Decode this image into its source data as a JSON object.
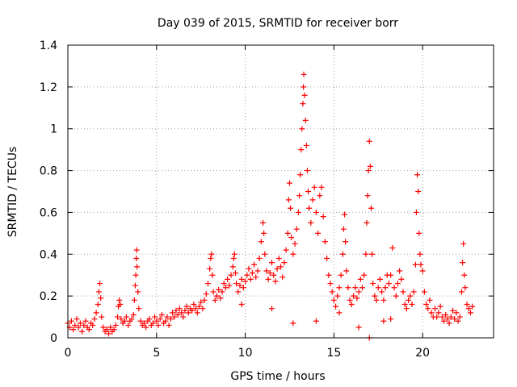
{
  "chart_data": {
    "type": "scatter",
    "title": "Day 039 of 2015, SRMTID for receiver borr",
    "xlabel": "GPS time / hours",
    "ylabel": "SRMTID / TECUs",
    "xlim": [
      0,
      24
    ],
    "ylim": [
      0,
      1.4
    ],
    "x_ticks": [
      0,
      5,
      10,
      15,
      20
    ],
    "x_tick_labels": [
      "0",
      "5",
      "10",
      "15",
      "20"
    ],
    "y_ticks": [
      0,
      0.2,
      0.4,
      0.6,
      0.8,
      1.0,
      1.2,
      1.4
    ],
    "y_tick_labels": [
      "0",
      "0.2",
      "0.4",
      "0.6",
      "0.8",
      "1",
      "1.2",
      "1.4"
    ],
    "grid": true,
    "marker": "plus",
    "color": "#ff0000",
    "series": [
      {
        "name": "SRMTID",
        "points": [
          [
            0.0,
            0.07
          ],
          [
            0.1,
            0.05
          ],
          [
            0.2,
            0.08
          ],
          [
            0.3,
            0.04
          ],
          [
            0.4,
            0.06
          ],
          [
            0.5,
            0.09
          ],
          [
            0.6,
            0.05
          ],
          [
            0.7,
            0.07
          ],
          [
            0.8,
            0.03
          ],
          [
            0.9,
            0.06
          ],
          [
            1.0,
            0.08
          ],
          [
            1.1,
            0.05
          ],
          [
            1.2,
            0.04
          ],
          [
            1.3,
            0.07
          ],
          [
            1.4,
            0.06
          ],
          [
            1.5,
            0.09
          ],
          [
            1.6,
            0.12
          ],
          [
            1.7,
            0.16
          ],
          [
            1.75,
            0.22
          ],
          [
            1.8,
            0.26
          ],
          [
            1.85,
            0.19
          ],
          [
            1.9,
            0.1
          ],
          [
            2.0,
            0.05
          ],
          [
            2.1,
            0.03
          ],
          [
            2.2,
            0.04
          ],
          [
            2.3,
            0.02
          ],
          [
            2.4,
            0.05
          ],
          [
            2.5,
            0.03
          ],
          [
            2.6,
            0.04
          ],
          [
            2.7,
            0.06
          ],
          [
            2.8,
            0.1
          ],
          [
            2.85,
            0.15
          ],
          [
            2.9,
            0.18
          ],
          [
            2.95,
            0.16
          ],
          [
            3.0,
            0.09
          ],
          [
            3.1,
            0.07
          ],
          [
            3.2,
            0.08
          ],
          [
            3.3,
            0.1
          ],
          [
            3.4,
            0.06
          ],
          [
            3.5,
            0.08
          ],
          [
            3.6,
            0.09
          ],
          [
            3.7,
            0.11
          ],
          [
            3.75,
            0.18
          ],
          [
            3.8,
            0.25
          ],
          [
            3.83,
            0.3
          ],
          [
            3.86,
            0.38
          ],
          [
            3.88,
            0.42
          ],
          [
            3.9,
            0.34
          ],
          [
            3.95,
            0.22
          ],
          [
            4.0,
            0.14
          ],
          [
            4.1,
            0.08
          ],
          [
            4.2,
            0.06
          ],
          [
            4.3,
            0.07
          ],
          [
            4.4,
            0.05
          ],
          [
            4.5,
            0.08
          ],
          [
            4.6,
            0.09
          ],
          [
            4.7,
            0.06
          ],
          [
            4.8,
            0.07
          ],
          [
            4.9,
            0.1
          ],
          [
            5.0,
            0.08
          ],
          [
            5.1,
            0.06
          ],
          [
            5.2,
            0.09
          ],
          [
            5.3,
            0.11
          ],
          [
            5.4,
            0.07
          ],
          [
            5.5,
            0.08
          ],
          [
            5.6,
            0.1
          ],
          [
            5.7,
            0.06
          ],
          [
            5.8,
            0.09
          ],
          [
            5.9,
            0.12
          ],
          [
            6.0,
            0.1
          ],
          [
            6.1,
            0.13
          ],
          [
            6.2,
            0.11
          ],
          [
            6.3,
            0.14
          ],
          [
            6.4,
            0.12
          ],
          [
            6.5,
            0.1
          ],
          [
            6.6,
            0.13
          ],
          [
            6.7,
            0.15
          ],
          [
            6.8,
            0.12
          ],
          [
            6.9,
            0.14
          ],
          [
            7.0,
            0.13
          ],
          [
            7.1,
            0.16
          ],
          [
            7.2,
            0.14
          ],
          [
            7.3,
            0.12
          ],
          [
            7.4,
            0.15
          ],
          [
            7.5,
            0.17
          ],
          [
            7.6,
            0.14
          ],
          [
            7.7,
            0.18
          ],
          [
            7.8,
            0.21
          ],
          [
            7.9,
            0.26
          ],
          [
            8.0,
            0.33
          ],
          [
            8.05,
            0.38
          ],
          [
            8.1,
            0.4
          ],
          [
            8.15,
            0.3
          ],
          [
            8.2,
            0.22
          ],
          [
            8.3,
            0.18
          ],
          [
            8.4,
            0.2
          ],
          [
            8.5,
            0.23
          ],
          [
            8.6,
            0.19
          ],
          [
            8.7,
            0.22
          ],
          [
            8.8,
            0.26
          ],
          [
            8.9,
            0.24
          ],
          [
            9.0,
            0.28
          ],
          [
            9.1,
            0.25
          ],
          [
            9.2,
            0.3
          ],
          [
            9.3,
            0.34
          ],
          [
            9.35,
            0.38
          ],
          [
            9.4,
            0.4
          ],
          [
            9.45,
            0.31
          ],
          [
            9.5,
            0.26
          ],
          [
            9.6,
            0.22
          ],
          [
            9.7,
            0.25
          ],
          [
            9.8,
            0.28
          ],
          [
            9.9,
            0.24
          ],
          [
            10.0,
            0.27
          ],
          [
            10.1,
            0.3
          ],
          [
            10.2,
            0.33
          ],
          [
            10.3,
            0.28
          ],
          [
            10.4,
            0.31
          ],
          [
            10.5,
            0.35
          ],
          [
            10.6,
            0.29
          ],
          [
            10.7,
            0.32
          ],
          [
            10.8,
            0.38
          ],
          [
            10.9,
            0.46
          ],
          [
            11.0,
            0.55
          ],
          [
            11.05,
            0.5
          ],
          [
            11.1,
            0.4
          ],
          [
            11.2,
            0.32
          ],
          [
            11.3,
            0.28
          ],
          [
            11.4,
            0.31
          ],
          [
            11.5,
            0.36
          ],
          [
            11.6,
            0.3
          ],
          [
            11.7,
            0.27
          ],
          [
            11.8,
            0.33
          ],
          [
            11.9,
            0.38
          ],
          [
            12.0,
            0.34
          ],
          [
            12.1,
            0.29
          ],
          [
            12.2,
            0.36
          ],
          [
            12.3,
            0.42
          ],
          [
            12.4,
            0.5
          ],
          [
            12.45,
            0.66
          ],
          [
            12.5,
            0.74
          ],
          [
            12.55,
            0.62
          ],
          [
            12.6,
            0.48
          ],
          [
            12.7,
            0.4
          ],
          [
            12.8,
            0.45
          ],
          [
            12.9,
            0.52
          ],
          [
            13.0,
            0.6
          ],
          [
            13.05,
            0.68
          ],
          [
            13.1,
            0.78
          ],
          [
            13.15,
            0.9
          ],
          [
            13.2,
            1.0
          ],
          [
            13.25,
            1.12
          ],
          [
            13.28,
            1.2
          ],
          [
            13.3,
            1.26
          ],
          [
            13.35,
            1.16
          ],
          [
            13.4,
            1.04
          ],
          [
            13.45,
            0.92
          ],
          [
            13.5,
            0.8
          ],
          [
            13.55,
            0.7
          ],
          [
            13.6,
            0.62
          ],
          [
            13.7,
            0.55
          ],
          [
            13.8,
            0.66
          ],
          [
            13.9,
            0.72
          ],
          [
            14.0,
            0.6
          ],
          [
            14.1,
            0.5
          ],
          [
            14.2,
            0.68
          ],
          [
            14.3,
            0.72
          ],
          [
            14.4,
            0.58
          ],
          [
            14.5,
            0.46
          ],
          [
            14.6,
            0.38
          ],
          [
            14.7,
            0.3
          ],
          [
            14.8,
            0.26
          ],
          [
            14.9,
            0.22
          ],
          [
            15.0,
            0.18
          ],
          [
            15.1,
            0.15
          ],
          [
            15.2,
            0.2
          ],
          [
            15.3,
            0.24
          ],
          [
            15.4,
            0.3
          ],
          [
            15.5,
            0.4
          ],
          [
            15.55,
            0.52
          ],
          [
            15.6,
            0.59
          ],
          [
            15.65,
            0.46
          ],
          [
            15.7,
            0.32
          ],
          [
            15.8,
            0.24
          ],
          [
            15.9,
            0.18
          ],
          [
            16.0,
            0.16
          ],
          [
            16.1,
            0.2
          ],
          [
            16.2,
            0.24
          ],
          [
            16.3,
            0.19
          ],
          [
            16.4,
            0.22
          ],
          [
            16.5,
            0.28
          ],
          [
            16.6,
            0.24
          ],
          [
            16.7,
            0.3
          ],
          [
            16.8,
            0.4
          ],
          [
            16.85,
            0.55
          ],
          [
            16.9,
            0.68
          ],
          [
            16.95,
            0.8
          ],
          [
            17.0,
            0.94
          ],
          [
            17.05,
            0.82
          ],
          [
            17.1,
            0.62
          ],
          [
            17.15,
            0.4
          ],
          [
            17.2,
            0.26
          ],
          [
            17.3,
            0.2
          ],
          [
            17.4,
            0.18
          ],
          [
            17.5,
            0.24
          ],
          [
            17.6,
            0.28
          ],
          [
            17.7,
            0.22
          ],
          [
            17.8,
            0.18
          ],
          [
            17.9,
            0.24
          ],
          [
            18.0,
            0.3
          ],
          [
            18.1,
            0.26
          ],
          [
            18.2,
            0.3
          ],
          [
            18.3,
            0.43
          ],
          [
            18.4,
            0.24
          ],
          [
            18.5,
            0.2
          ],
          [
            18.6,
            0.26
          ],
          [
            18.7,
            0.32
          ],
          [
            18.8,
            0.28
          ],
          [
            18.9,
            0.22
          ],
          [
            19.0,
            0.16
          ],
          [
            19.1,
            0.14
          ],
          [
            19.2,
            0.18
          ],
          [
            19.3,
            0.2
          ],
          [
            19.4,
            0.16
          ],
          [
            19.5,
            0.22
          ],
          [
            19.6,
            0.35
          ],
          [
            19.65,
            0.6
          ],
          [
            19.7,
            0.78
          ],
          [
            19.75,
            0.7
          ],
          [
            19.8,
            0.5
          ],
          [
            19.85,
            0.4
          ],
          [
            19.9,
            0.35
          ],
          [
            20.0,
            0.32
          ],
          [
            20.1,
            0.22
          ],
          [
            20.2,
            0.16
          ],
          [
            20.3,
            0.14
          ],
          [
            20.4,
            0.18
          ],
          [
            20.5,
            0.12
          ],
          [
            20.6,
            0.1
          ],
          [
            20.7,
            0.14
          ],
          [
            20.8,
            0.1
          ],
          [
            20.9,
            0.12
          ],
          [
            21.0,
            0.15
          ],
          [
            21.1,
            0.1
          ],
          [
            21.2,
            0.08
          ],
          [
            21.3,
            0.11
          ],
          [
            21.4,
            0.09
          ],
          [
            21.5,
            0.07
          ],
          [
            21.6,
            0.1
          ],
          [
            21.7,
            0.13
          ],
          [
            21.8,
            0.09
          ],
          [
            21.9,
            0.12
          ],
          [
            22.0,
            0.08
          ],
          [
            22.1,
            0.1
          ],
          [
            22.2,
            0.22
          ],
          [
            22.25,
            0.36
          ],
          [
            22.3,
            0.45
          ],
          [
            22.35,
            0.3
          ],
          [
            22.4,
            0.24
          ],
          [
            22.5,
            0.16
          ],
          [
            22.6,
            0.14
          ],
          [
            22.7,
            0.12
          ],
          [
            22.8,
            0.15
          ],
          [
            17.0,
            0.0
          ],
          [
            12.7,
            0.07
          ],
          [
            14.0,
            0.08
          ],
          [
            16.4,
            0.05
          ],
          [
            15.3,
            0.12
          ],
          [
            11.5,
            0.14
          ],
          [
            9.8,
            0.16
          ],
          [
            17.8,
            0.08
          ],
          [
            18.2,
            0.09
          ]
        ]
      }
    ]
  }
}
